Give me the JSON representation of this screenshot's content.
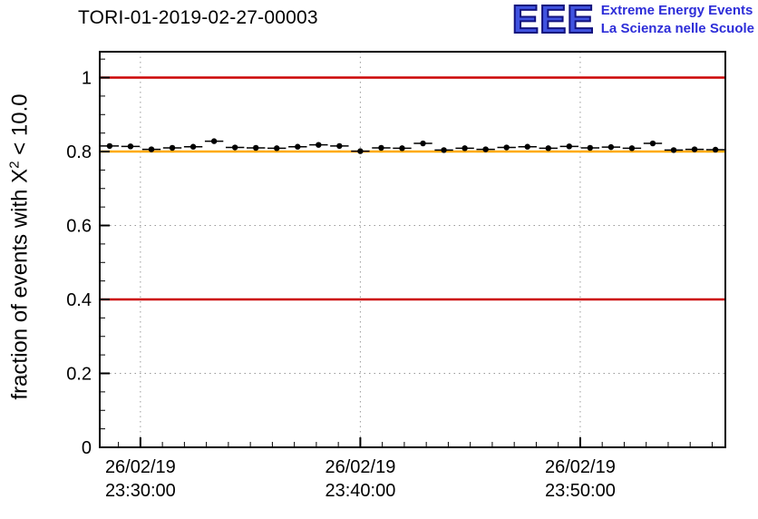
{
  "page": {
    "background": "#ffffff"
  },
  "title": "TORI-01-2019-02-27-00003",
  "logo": {
    "acronym": "EEE",
    "line1": "Extreme Energy Events",
    "line2": "La Scienza nelle Scuole",
    "color": "#2d2dd8"
  },
  "ylabel": {
    "prefix": "fraction of events with X",
    "sup": "2",
    "suffix": " < 10.0"
  },
  "chart_data": {
    "type": "scatter",
    "title": "TORI-01-2019-02-27-00003",
    "xlabel": "",
    "ylabel": "fraction of events with X^2 < 10.0",
    "ylim": [
      0,
      1.07
    ],
    "xlim_minutes": [
      28.15,
      56.6
    ],
    "x_axis_date": "26/02/19",
    "grid": true,
    "legend": "none",
    "grid_color": "#999999",
    "frame_color": "#000000",
    "yticks": [
      {
        "value": 0,
        "label": "0"
      },
      {
        "value": 0.2,
        "label": "0.2"
      },
      {
        "value": 0.4,
        "label": "0.4"
      },
      {
        "value": 0.6,
        "label": "0.6"
      },
      {
        "value": 0.8,
        "label": "0.8"
      },
      {
        "value": 1.0,
        "label": "1"
      }
    ],
    "xticks": [
      {
        "minute": 30,
        "date": "26/02/19",
        "time": "23:30:00"
      },
      {
        "minute": 40,
        "date": "26/02/19",
        "time": "23:40:00"
      },
      {
        "minute": 50,
        "date": "26/02/19",
        "time": "23:50:00"
      }
    ],
    "reference_lines": [
      {
        "value": 1.0,
        "color": "#cc0000",
        "name": "upper-limit-line"
      },
      {
        "value": 0.4,
        "color": "#cc0000",
        "name": "lower-limit-line"
      },
      {
        "value": 0.8,
        "color": "#ffaa00",
        "name": "nominal-line"
      }
    ],
    "points": {
      "x_minutes": [
        28.6,
        29.55,
        30.5,
        31.45,
        32.4,
        33.35,
        34.3,
        35.25,
        36.2,
        37.15,
        38.1,
        39.05,
        40.0,
        40.95,
        41.9,
        42.85,
        43.8,
        44.75,
        45.7,
        46.65,
        47.6,
        48.55,
        49.5,
        50.45,
        51.4,
        52.35,
        53.3,
        54.25,
        55.2,
        56.15
      ],
      "y": [
        0.815,
        0.814,
        0.806,
        0.81,
        0.813,
        0.828,
        0.811,
        0.81,
        0.809,
        0.813,
        0.818,
        0.815,
        0.801,
        0.81,
        0.809,
        0.822,
        0.804,
        0.809,
        0.806,
        0.811,
        0.813,
        0.809,
        0.814,
        0.81,
        0.812,
        0.809,
        0.822,
        0.804,
        0.806,
        0.805
      ],
      "xerr_minutes": 0.42,
      "yerr": 0.004,
      "marker_color": "#000000"
    }
  }
}
